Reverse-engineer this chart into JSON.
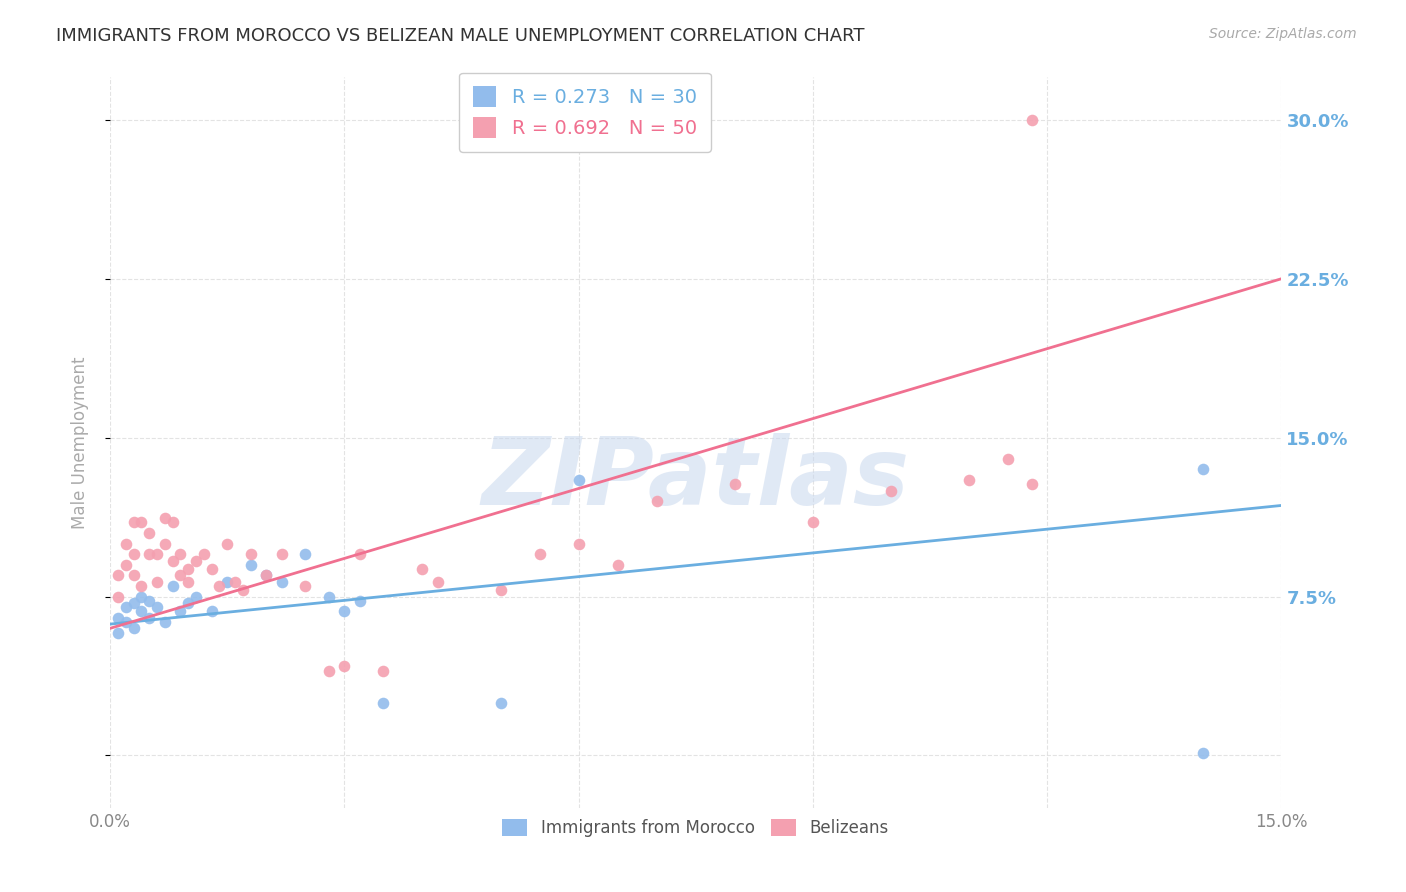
{
  "title": "IMMIGRANTS FROM MOROCCO VS BELIZEAN MALE UNEMPLOYMENT CORRELATION CHART",
  "source": "Source: ZipAtlas.com",
  "ylabel": "Male Unemployment",
  "watermark": "ZIPatlas",
  "xlim": [
    0.0,
    0.15
  ],
  "ylim": [
    -0.025,
    0.32
  ],
  "xticks": [
    0.0,
    0.03,
    0.06,
    0.09,
    0.12,
    0.15
  ],
  "yticks": [
    0.0,
    0.075,
    0.15,
    0.225,
    0.3
  ],
  "ytick_labels": [
    "",
    "7.5%",
    "15.0%",
    "22.5%",
    "30.0%"
  ],
  "xtick_labels": [
    "0.0%",
    "",
    "",
    "",
    "",
    "15.0%"
  ],
  "blue_color": "#92BCEC",
  "pink_color": "#F4A0B0",
  "blue_line_color": "#6AAEE0",
  "pink_line_color": "#F07090",
  "legend_R_blue": "R = 0.273",
  "legend_N_blue": "N = 30",
  "legend_R_pink": "R = 0.692",
  "legend_N_pink": "N = 50",
  "legend_label_blue": "Immigrants from Morocco",
  "legend_label_pink": "Belizeans",
  "blue_scatter_x": [
    0.001,
    0.001,
    0.002,
    0.002,
    0.003,
    0.003,
    0.004,
    0.004,
    0.005,
    0.005,
    0.006,
    0.007,
    0.008,
    0.009,
    0.01,
    0.011,
    0.013,
    0.015,
    0.018,
    0.02,
    0.022,
    0.025,
    0.028,
    0.03,
    0.032,
    0.035,
    0.05,
    0.06,
    0.14,
    0.14
  ],
  "blue_scatter_y": [
    0.065,
    0.058,
    0.07,
    0.063,
    0.072,
    0.06,
    0.068,
    0.075,
    0.073,
    0.065,
    0.07,
    0.063,
    0.08,
    0.068,
    0.072,
    0.075,
    0.068,
    0.082,
    0.09,
    0.085,
    0.082,
    0.095,
    0.075,
    0.068,
    0.073,
    0.025,
    0.025,
    0.13,
    0.135,
    0.001
  ],
  "pink_scatter_x": [
    0.001,
    0.001,
    0.002,
    0.002,
    0.003,
    0.003,
    0.003,
    0.004,
    0.004,
    0.005,
    0.005,
    0.006,
    0.006,
    0.007,
    0.007,
    0.008,
    0.008,
    0.009,
    0.009,
    0.01,
    0.01,
    0.011,
    0.012,
    0.013,
    0.014,
    0.015,
    0.016,
    0.017,
    0.018,
    0.02,
    0.022,
    0.025,
    0.028,
    0.03,
    0.032,
    0.035,
    0.04,
    0.042,
    0.05,
    0.055,
    0.06,
    0.065,
    0.07,
    0.08,
    0.09,
    0.1,
    0.11,
    0.115,
    0.118,
    0.118
  ],
  "pink_scatter_y": [
    0.075,
    0.085,
    0.09,
    0.1,
    0.085,
    0.095,
    0.11,
    0.08,
    0.11,
    0.095,
    0.105,
    0.082,
    0.095,
    0.1,
    0.112,
    0.092,
    0.11,
    0.085,
    0.095,
    0.088,
    0.082,
    0.092,
    0.095,
    0.088,
    0.08,
    0.1,
    0.082,
    0.078,
    0.095,
    0.085,
    0.095,
    0.08,
    0.04,
    0.042,
    0.095,
    0.04,
    0.088,
    0.082,
    0.078,
    0.095,
    0.1,
    0.09,
    0.12,
    0.128,
    0.11,
    0.125,
    0.13,
    0.14,
    0.128,
    0.3
  ],
  "blue_line_x": [
    0.0,
    0.15
  ],
  "blue_line_y": [
    0.062,
    0.118
  ],
  "pink_line_x": [
    0.0,
    0.15
  ],
  "pink_line_y": [
    0.06,
    0.225
  ],
  "background_color": "#ffffff",
  "grid_color": "#e0e0e0",
  "title_color": "#333333",
  "tick_label_color_right": "#6AAEE0",
  "tick_label_color_bottom": "#888888",
  "watermark_color": "#c8d8ee",
  "watermark_alpha": 0.55
}
